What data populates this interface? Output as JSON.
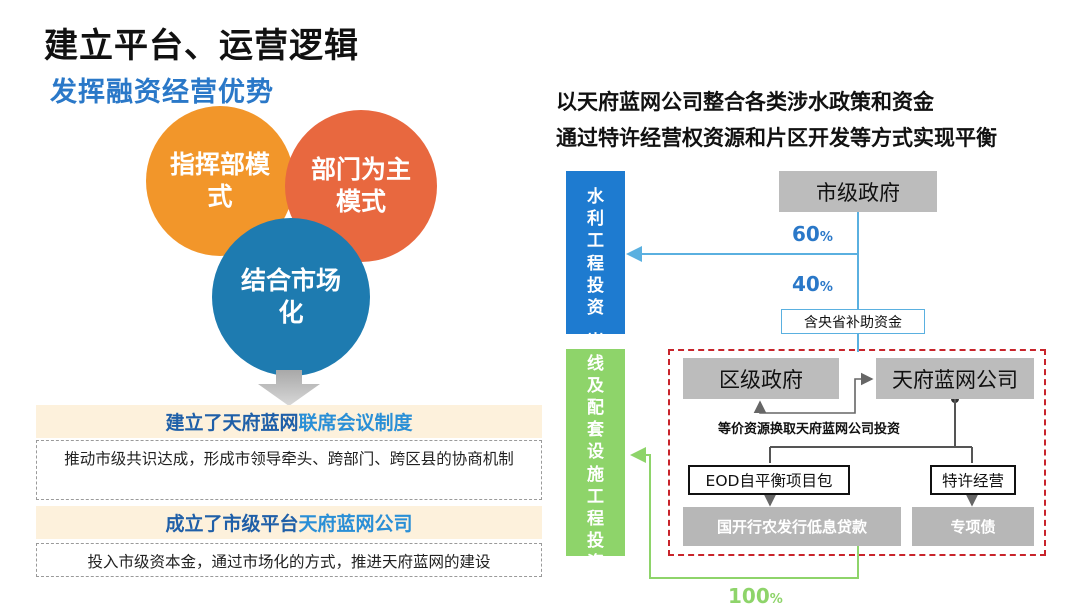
{
  "left": {
    "title": "建立平台、运营逻辑",
    "subtitle": "发挥融资经营优势",
    "circles": {
      "c1": "指挥部模式",
      "c2": "部门为主模式",
      "c3": "结合市场化"
    },
    "band1": {
      "part_a": "建立了天府蓝网",
      "part_b": "联席会议制度"
    },
    "note1": "推动市级共识达成，形成市领导牵头、跨部门、跨区县的协商机制",
    "band2": {
      "part_a": "成立了市级平台",
      "part_b": "天府蓝网公司"
    },
    "note2": "投入市级资本金，通过市场化的方式，推进天府蓝网的建设"
  },
  "right": {
    "heading1": "以天府蓝网公司整合各类涉水政策和资金",
    "heading2": "通过特许经营权资源和片区开发等方式实现平衡",
    "water_box": "水利工程投资",
    "shore_box": "岸线及配套设施工程投资",
    "city_gov": "市级政府",
    "pct_60": "60",
    "pct_40": "40",
    "pct_100": "100",
    "pct_unit": "%",
    "subsidy": "含央省补助资金",
    "district_gov": "区级政府",
    "tianfu_company": "天府蓝网公司",
    "exchange_label": "等价资源换取天府蓝网公司投资",
    "eod": "EOD自平衡项目包",
    "franchise": "特许经营",
    "loan": "国开行农发行低息贷款",
    "bond": "专项债"
  },
  "colors": {
    "blue": "#1e7bd0",
    "green": "#8ed46a",
    "orange": "#f2962a",
    "coral": "#e8683f",
    "teal_blue": "#1e7bb0",
    "red_dash": "#c8242b",
    "gray_box": "#bcbcbc"
  }
}
